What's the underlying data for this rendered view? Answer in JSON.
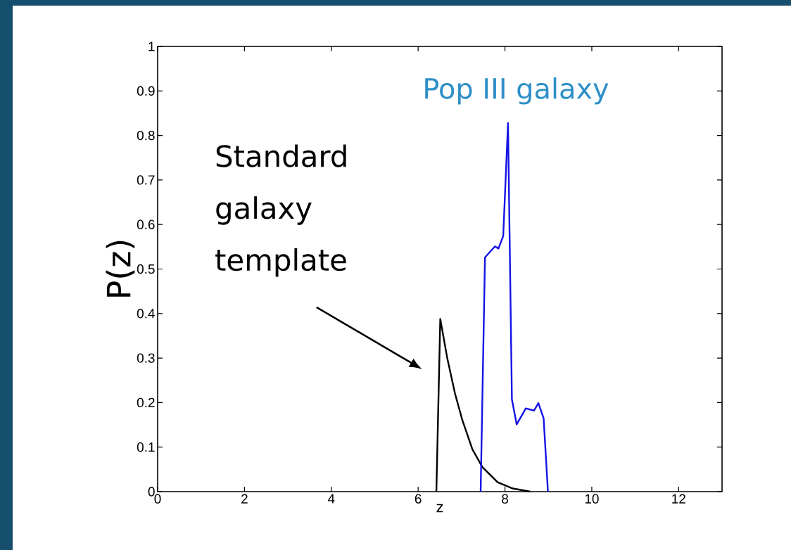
{
  "chart_data": {
    "type": "line",
    "xlabel": "z",
    "ylabel": "P(z)",
    "xlim": [
      0,
      13
    ],
    "ylim": [
      0,
      1
    ],
    "xticks": [
      0,
      2,
      4,
      6,
      8,
      10,
      12
    ],
    "yticks": [
      0,
      0.1,
      0.2,
      0.3,
      0.4,
      0.5,
      0.6,
      0.7,
      0.8,
      0.9,
      1
    ],
    "series": [
      {
        "name": "Standard galaxy template",
        "color": "#000000",
        "x": [
          6.42,
          6.51,
          6.67,
          6.85,
          7.02,
          7.25,
          7.48,
          7.83,
          8.18,
          8.58
        ],
        "values": [
          0,
          0.388,
          0.3,
          0.22,
          0.16,
          0.095,
          0.055,
          0.021,
          0.007,
          0
        ]
      },
      {
        "name": "Pop III galaxy",
        "color": "#1414e6",
        "x": [
          7.44,
          7.54,
          7.77,
          7.85,
          7.96,
          8.07,
          8.16,
          8.27,
          8.48,
          8.67,
          8.77,
          8.89,
          8.99
        ],
        "values": [
          0,
          0.526,
          0.551,
          0.546,
          0.574,
          0.828,
          0.207,
          0.151,
          0.187,
          0.182,
          0.199,
          0.165,
          0
        ]
      }
    ]
  }
}
